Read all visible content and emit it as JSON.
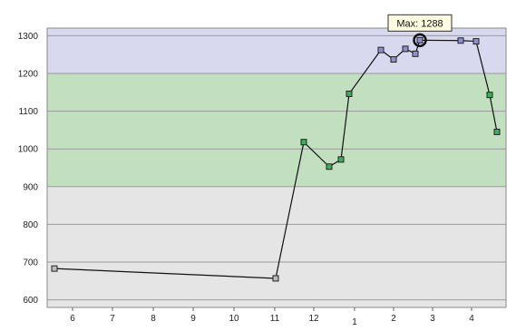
{
  "chart_data": {
    "type": "line",
    "title": "",
    "xlabel": "",
    "ylabel": "",
    "ylim": [
      580,
      1320
    ],
    "y_ticks": [
      600,
      700,
      800,
      900,
      1000,
      1100,
      1200,
      1300
    ],
    "x_tick_labels": [
      "6",
      "7",
      "8",
      "9",
      "10",
      "11",
      "12",
      "1",
      "2",
      "3",
      "4"
    ],
    "grid": true,
    "bands": [
      {
        "from": 580,
        "to": 900,
        "color": "#e5e5e5"
      },
      {
        "from": 900,
        "to": 1200,
        "color": "#c2e0c0"
      },
      {
        "from": 1200,
        "to": 1320,
        "color": "#d8d8ee"
      }
    ],
    "series": [
      {
        "values": [
          683,
          657,
          1018,
          953,
          972,
          1146,
          1262,
          1237,
          1265,
          1252,
          1288,
          1287,
          1285,
          1143,
          1045
        ],
        "marker_colors": [
          "#bbbbbb",
          "#bbbbbb",
          "#3fae5a",
          "#3fae5a",
          "#3fae5a",
          "#3fae5a",
          "#8f8fd0",
          "#8f8fd0",
          "#8f8fd0",
          "#8f8fd0",
          "#8f8fd0",
          "#8f8fd0",
          "#8f8fd0",
          "#3fae5a",
          "#3fae5a"
        ]
      }
    ],
    "x_positions": [
      5.55,
      11.05,
      11.75,
      12.35,
      12.65,
      12.85,
      13.65,
      13.95,
      14.25,
      14.45,
      14.65,
      15.65,
      16.05,
      16.35,
      16.65
    ],
    "annotation": {
      "label": "Max: 1288",
      "value": 1288,
      "point_index": 10
    }
  }
}
